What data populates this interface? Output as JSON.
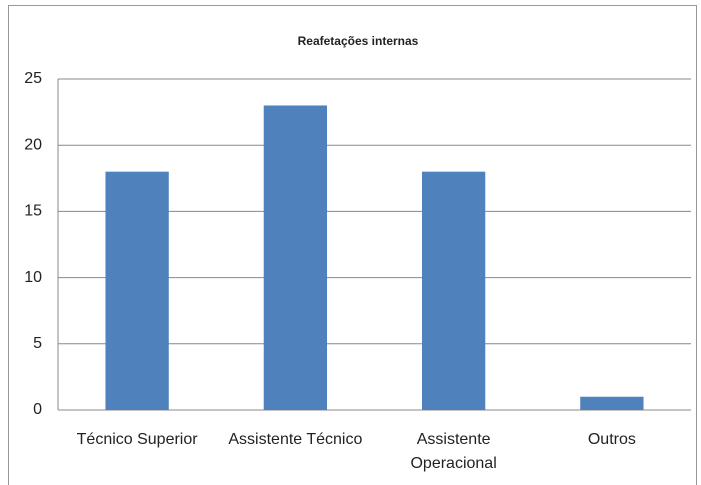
{
  "chart_data": {
    "type": "bar",
    "title": "Reafetações internas",
    "categories": [
      "Técnico Superior",
      "Assistente Técnico",
      "Assistente Operacional",
      "Outros"
    ],
    "values": [
      18,
      23,
      18,
      1
    ],
    "color": "#4f81bd",
    "ylim": [
      0,
      25
    ],
    "yticks": [
      0,
      5,
      10,
      15,
      20,
      25
    ],
    "grid": true
  }
}
